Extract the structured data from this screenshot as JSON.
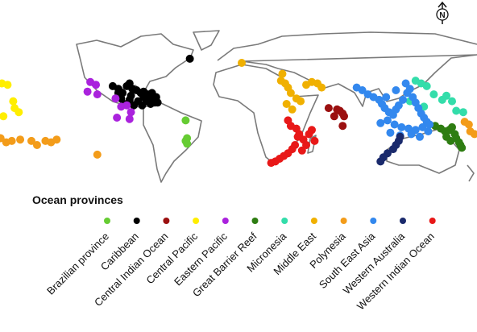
{
  "compass": "N",
  "chart_data": {
    "type": "scatter",
    "legend_title": "Ocean provinces",
    "series": [
      {
        "name": "Brazilian province",
        "color": "#66cc33",
        "x": [
          -40,
          -39,
          -40,
          -39
        ],
        "values": [
          -2,
          -15,
          -17,
          -19
        ]
      },
      {
        "name": "Caribbean",
        "color": "#000000",
        "x": [
          -37,
          -92,
          -88,
          -85,
          -82,
          -80,
          -78,
          -75,
          -72,
          -70,
          -67,
          -64,
          -61,
          -86,
          -80,
          -74,
          -68,
          -62,
          -84,
          -77,
          -71,
          -65,
          -60,
          -88,
          -79,
          -70,
          -66
        ],
        "values": [
          43,
          23,
          21,
          18,
          23,
          25,
          21,
          20,
          18,
          19,
          17,
          18,
          15,
          14,
          13,
          12,
          12,
          11,
          10,
          9,
          9,
          10,
          11,
          18,
          16,
          15,
          14
        ]
      },
      {
        "name": "Central Indian Ocean",
        "color": "#9b1010",
        "x": [
          62,
          68,
          70,
          72,
          73,
          66,
          72
        ],
        "values": [
          7,
          6,
          5,
          3,
          1,
          1,
          -6
        ]
      },
      {
        "name": "Central Pacific",
        "color": "#ffee00",
        "x": [
          -171,
          -167,
          -163,
          -162,
          -159,
          -170
        ],
        "values": [
          25,
          24,
          12,
          7,
          4,
          1
        ]
      },
      {
        "name": "Eastern Pacific",
        "color": "#aa22dd",
        "x": [
          -108,
          -104,
          -110,
          -103,
          -90,
          -86,
          -82,
          -79,
          -80,
          -89
        ],
        "values": [
          26,
          24,
          19,
          17,
          14,
          8,
          9,
          4,
          -1,
          0
        ]
      },
      {
        "name": "Great Barrier Reef",
        "color": "#2e7d12",
        "x": [
          138,
          142,
          145,
          148,
          150,
          152,
          146,
          149,
          153,
          156,
          157,
          155
        ],
        "values": [
          -6,
          -8,
          -10,
          -9,
          -7,
          -12,
          -14,
          -17,
          -15,
          -20,
          -22,
          -18
        ]
      },
      {
        "name": "Micronesia",
        "color": "#33ddaa",
        "x": [
          124,
          128,
          132,
          137,
          143,
          146,
          150,
          153,
          158,
          130,
          120
        ],
        "values": [
          27,
          25,
          23,
          17,
          13,
          16,
          12,
          5,
          4,
          8,
          12
        ]
      },
      {
        "name": "Middle East",
        "color": "#f0b000",
        "x": [
          0,
          29,
          28,
          31,
          33,
          35,
          39,
          42,
          46,
          50,
          54,
          57,
          32,
          36
        ],
        "values": [
          40,
          32,
          27,
          25,
          22,
          18,
          14,
          12,
          24,
          26,
          25,
          22,
          10,
          6
        ]
      },
      {
        "name": "Polynesia",
        "color": "#f39c1a",
        "x": [
          -172,
          -168,
          -164,
          -158,
          -150,
          -146,
          -140,
          -136,
          -132,
          -103,
          159,
          162,
          163,
          166
        ],
        "values": [
          -15,
          -18,
          -17,
          -16,
          -17,
          -20,
          -17,
          -18,
          -16,
          -27,
          -3,
          -5,
          -10,
          -12
        ]
      },
      {
        "name": "South East Asia",
        "color": "#3388ee",
        "x": [
          82,
          86,
          90,
          94,
          98,
          100,
          102,
          105,
          108,
          110,
          112,
          115,
          118,
          120,
          122,
          124,
          126,
          128,
          130,
          132,
          134,
          104,
          109,
          114,
          119,
          124,
          129,
          99,
          106,
          113,
          121,
          127,
          133,
          117,
          110,
          103
        ],
        "values": [
          22,
          20,
          17,
          15,
          13,
          10,
          7,
          4,
          2,
          6,
          9,
          13,
          18,
          21,
          15,
          11,
          7,
          3,
          0,
          -3,
          -5,
          -2,
          -5,
          -7,
          -8,
          -9,
          -7,
          -4,
          -11,
          -13,
          -12,
          -14,
          -10,
          25,
          20,
          15
        ]
      },
      {
        "name": "Western Australia",
        "color": "#1a2a6c",
        "x": [
          113,
          112,
          110,
          108,
          104,
          101,
          99
        ],
        "values": [
          -14,
          -17,
          -20,
          -23,
          -26,
          -29,
          -32
        ]
      },
      {
        "name": "Western Indian Ocean",
        "color": "#e81818",
        "x": [
          33,
          35,
          39,
          41,
          44,
          48,
          50,
          52,
          38,
          36,
          33,
          30,
          27,
          24,
          21,
          46,
          43,
          40
        ],
        "values": [
          -2,
          -6,
          -8,
          -12,
          -16,
          -12,
          -9,
          -17,
          -20,
          -23,
          -26,
          -28,
          -30,
          -32,
          -33,
          -20,
          -24,
          -14
        ]
      }
    ]
  }
}
